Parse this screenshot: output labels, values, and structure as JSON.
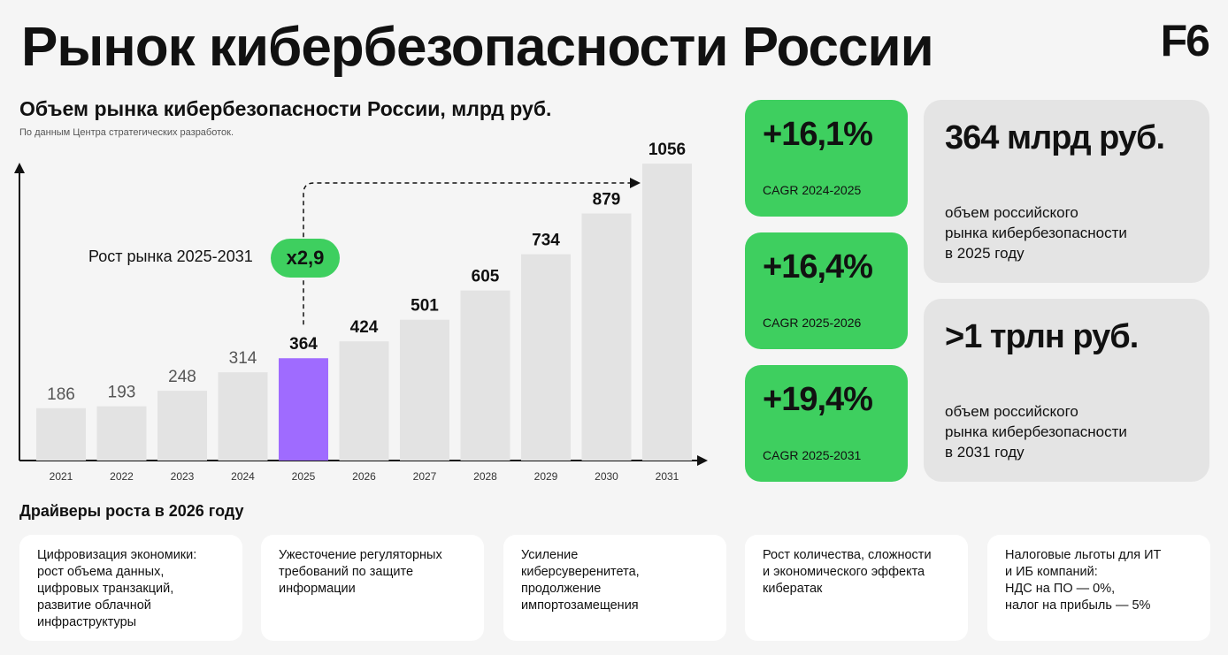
{
  "title": "Рынок кибербезопасности России",
  "logo": "F6",
  "chart_title": "Объем рынка кибербезопасности России, млрд руб.",
  "chart_source": "По данным Центра стратегических разработок.",
  "growth_label": "Рост рынка 2025-2031",
  "growth_badge": "x2,9",
  "colors": {
    "bar": "#e3e3e3",
    "highlight": "#9f6bff",
    "green": "#3ecf5f",
    "card_gray": "#e4e4e4"
  },
  "chart_data": {
    "type": "bar",
    "categories": [
      "2021",
      "2022",
      "2023",
      "2024",
      "2025",
      "2026",
      "2027",
      "2028",
      "2029",
      "2030",
      "2031"
    ],
    "values": [
      186,
      193,
      248,
      314,
      364,
      424,
      501,
      605,
      734,
      879,
      1056
    ],
    "value_labels": [
      "186",
      "193",
      "248",
      "314",
      "364",
      "424",
      "501",
      "605",
      "734",
      "879",
      "1056"
    ],
    "highlight_category": "2025",
    "ylim": [
      0,
      1200
    ],
    "grid": false,
    "xlabel": "",
    "ylabel": ""
  },
  "cagr_cards": [
    {
      "value": "+16,1%",
      "label": "CAGR 2024-2025"
    },
    {
      "value": "+16,4%",
      "label": "CAGR 2025-2026"
    },
    {
      "value": "+19,4%",
      "label": "CAGR 2025-2031"
    }
  ],
  "info_cards": [
    {
      "value": "364 млрд руб.",
      "lines": [
        "объем российского",
        "рынка кибербезопасности",
        "в 2025 году"
      ]
    },
    {
      "value": ">1 трлн руб.",
      "lines": [
        "объем российского",
        "рынка кибербезопасности",
        "в 2031 году"
      ]
    }
  ],
  "drivers_title": "Драйверы роста в 2026 году",
  "drivers": [
    {
      "lines": [
        "Цифровизация экономики:",
        "рост объема данных,",
        "цифровых транзакций,",
        "развитие облачной",
        "инфраструктуры"
      ]
    },
    {
      "lines": [
        "Ужесточение регуляторных",
        "требований по защите",
        "информации"
      ]
    },
    {
      "lines": [
        "Усиление",
        "киберсуверенитета,",
        "продолжение",
        "импортозамещения"
      ]
    },
    {
      "lines": [
        "Рост количества, сложности",
        "и экономического эффекта",
        "кибератак"
      ]
    },
    {
      "lines": [
        "Налоговые льготы для ИТ",
        "и ИБ компаний:",
        "НДС на ПО — 0%,",
        "налог на прибыль — 5%"
      ]
    }
  ]
}
